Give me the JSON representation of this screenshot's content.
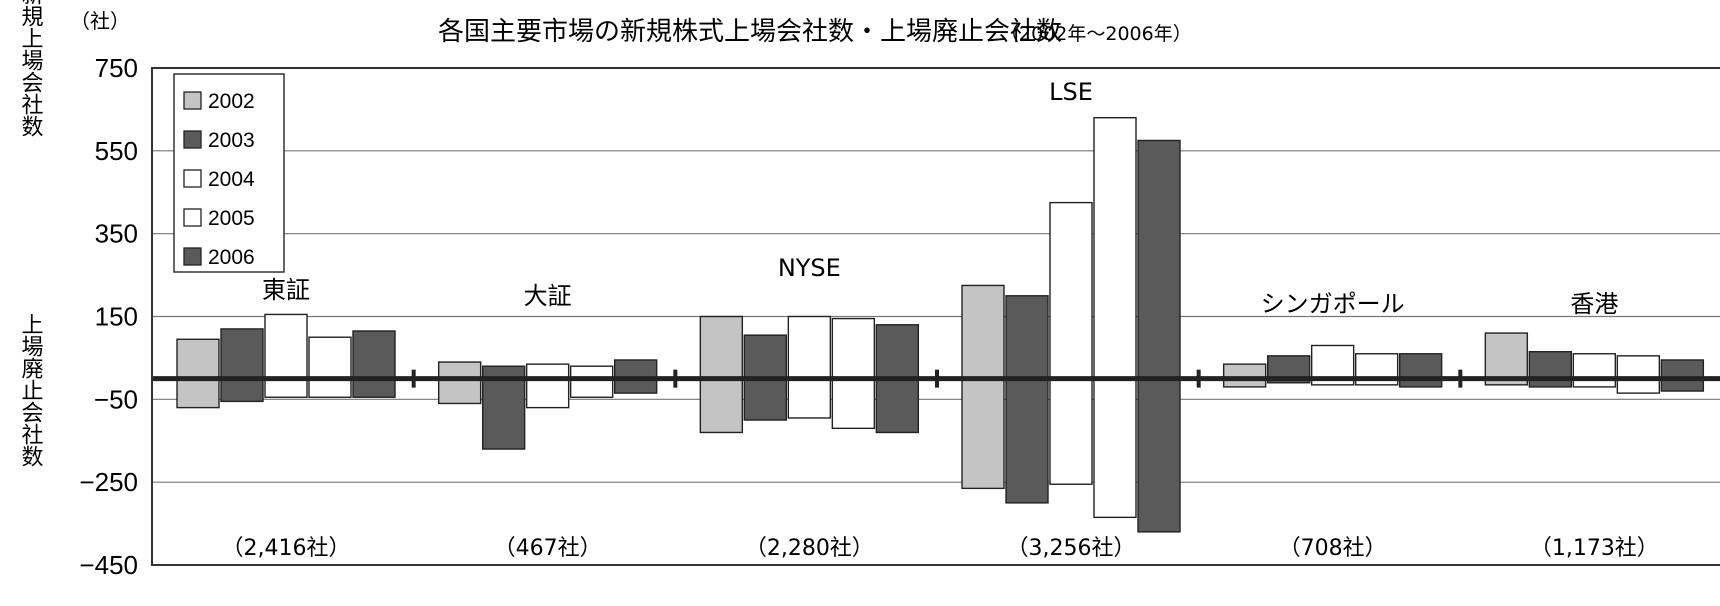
{
  "chart_data": {
    "type": "bar",
    "title": "各国主要市場の新規株式上場会社数・上場廃止会社数",
    "subtitle": "（2002年～2006年）",
    "y_unit": "（社）",
    "ylabel_top": "新規上場会社数",
    "ylabel_bottom": "上場廃止会社数",
    "ylim": [
      -450,
      750
    ],
    "yticks": [
      750,
      550,
      350,
      150,
      -50,
      -250,
      -450
    ],
    "tick_labels": [
      "750",
      "550",
      "350",
      "150",
      "−50",
      "−250",
      "−450"
    ],
    "gridlines": [
      550,
      350,
      150,
      -50,
      -250
    ],
    "legend_position": "top-left",
    "years": [
      "2002",
      "2003",
      "2004",
      "2005",
      "2006"
    ],
    "series_colors": [
      "#c4c4c4",
      "#5a5a5a",
      "#ffffff",
      "#ffffff",
      "#5a5a5a"
    ],
    "markets": [
      {
        "name": "東証",
        "listed_companies": "（2,416社）",
        "new_listings": [
          95,
          120,
          155,
          100,
          115
        ],
        "delistings": [
          -70,
          -55,
          -45,
          -45,
          -45
        ]
      },
      {
        "name": "大証",
        "listed_companies": "（467社）",
        "new_listings": [
          40,
          30,
          35,
          30,
          45
        ],
        "delistings": [
          -60,
          -170,
          -70,
          -45,
          -35
        ]
      },
      {
        "name": "NYSE",
        "listed_companies": "（2,280社）",
        "new_listings": [
          150,
          105,
          150,
          145,
          130
        ],
        "delistings": [
          -130,
          -100,
          -95,
          -120,
          -130
        ]
      },
      {
        "name": "LSE",
        "listed_companies": "（3,256社）",
        "new_listings": [
          225,
          200,
          425,
          630,
          575
        ],
        "delistings": [
          -265,
          -300,
          -255,
          -335,
          -370
        ]
      },
      {
        "name": "シンガポール",
        "listed_companies": "（708社）",
        "new_listings": [
          35,
          55,
          80,
          60,
          60
        ],
        "delistings": [
          -20,
          -10,
          -15,
          -15,
          -20
        ]
      },
      {
        "name": "香港",
        "listed_companies": "（1,173社）",
        "new_listings": [
          110,
          65,
          60,
          55,
          45
        ],
        "delistings": [
          -15,
          -20,
          -20,
          -35,
          -30
        ]
      }
    ]
  }
}
